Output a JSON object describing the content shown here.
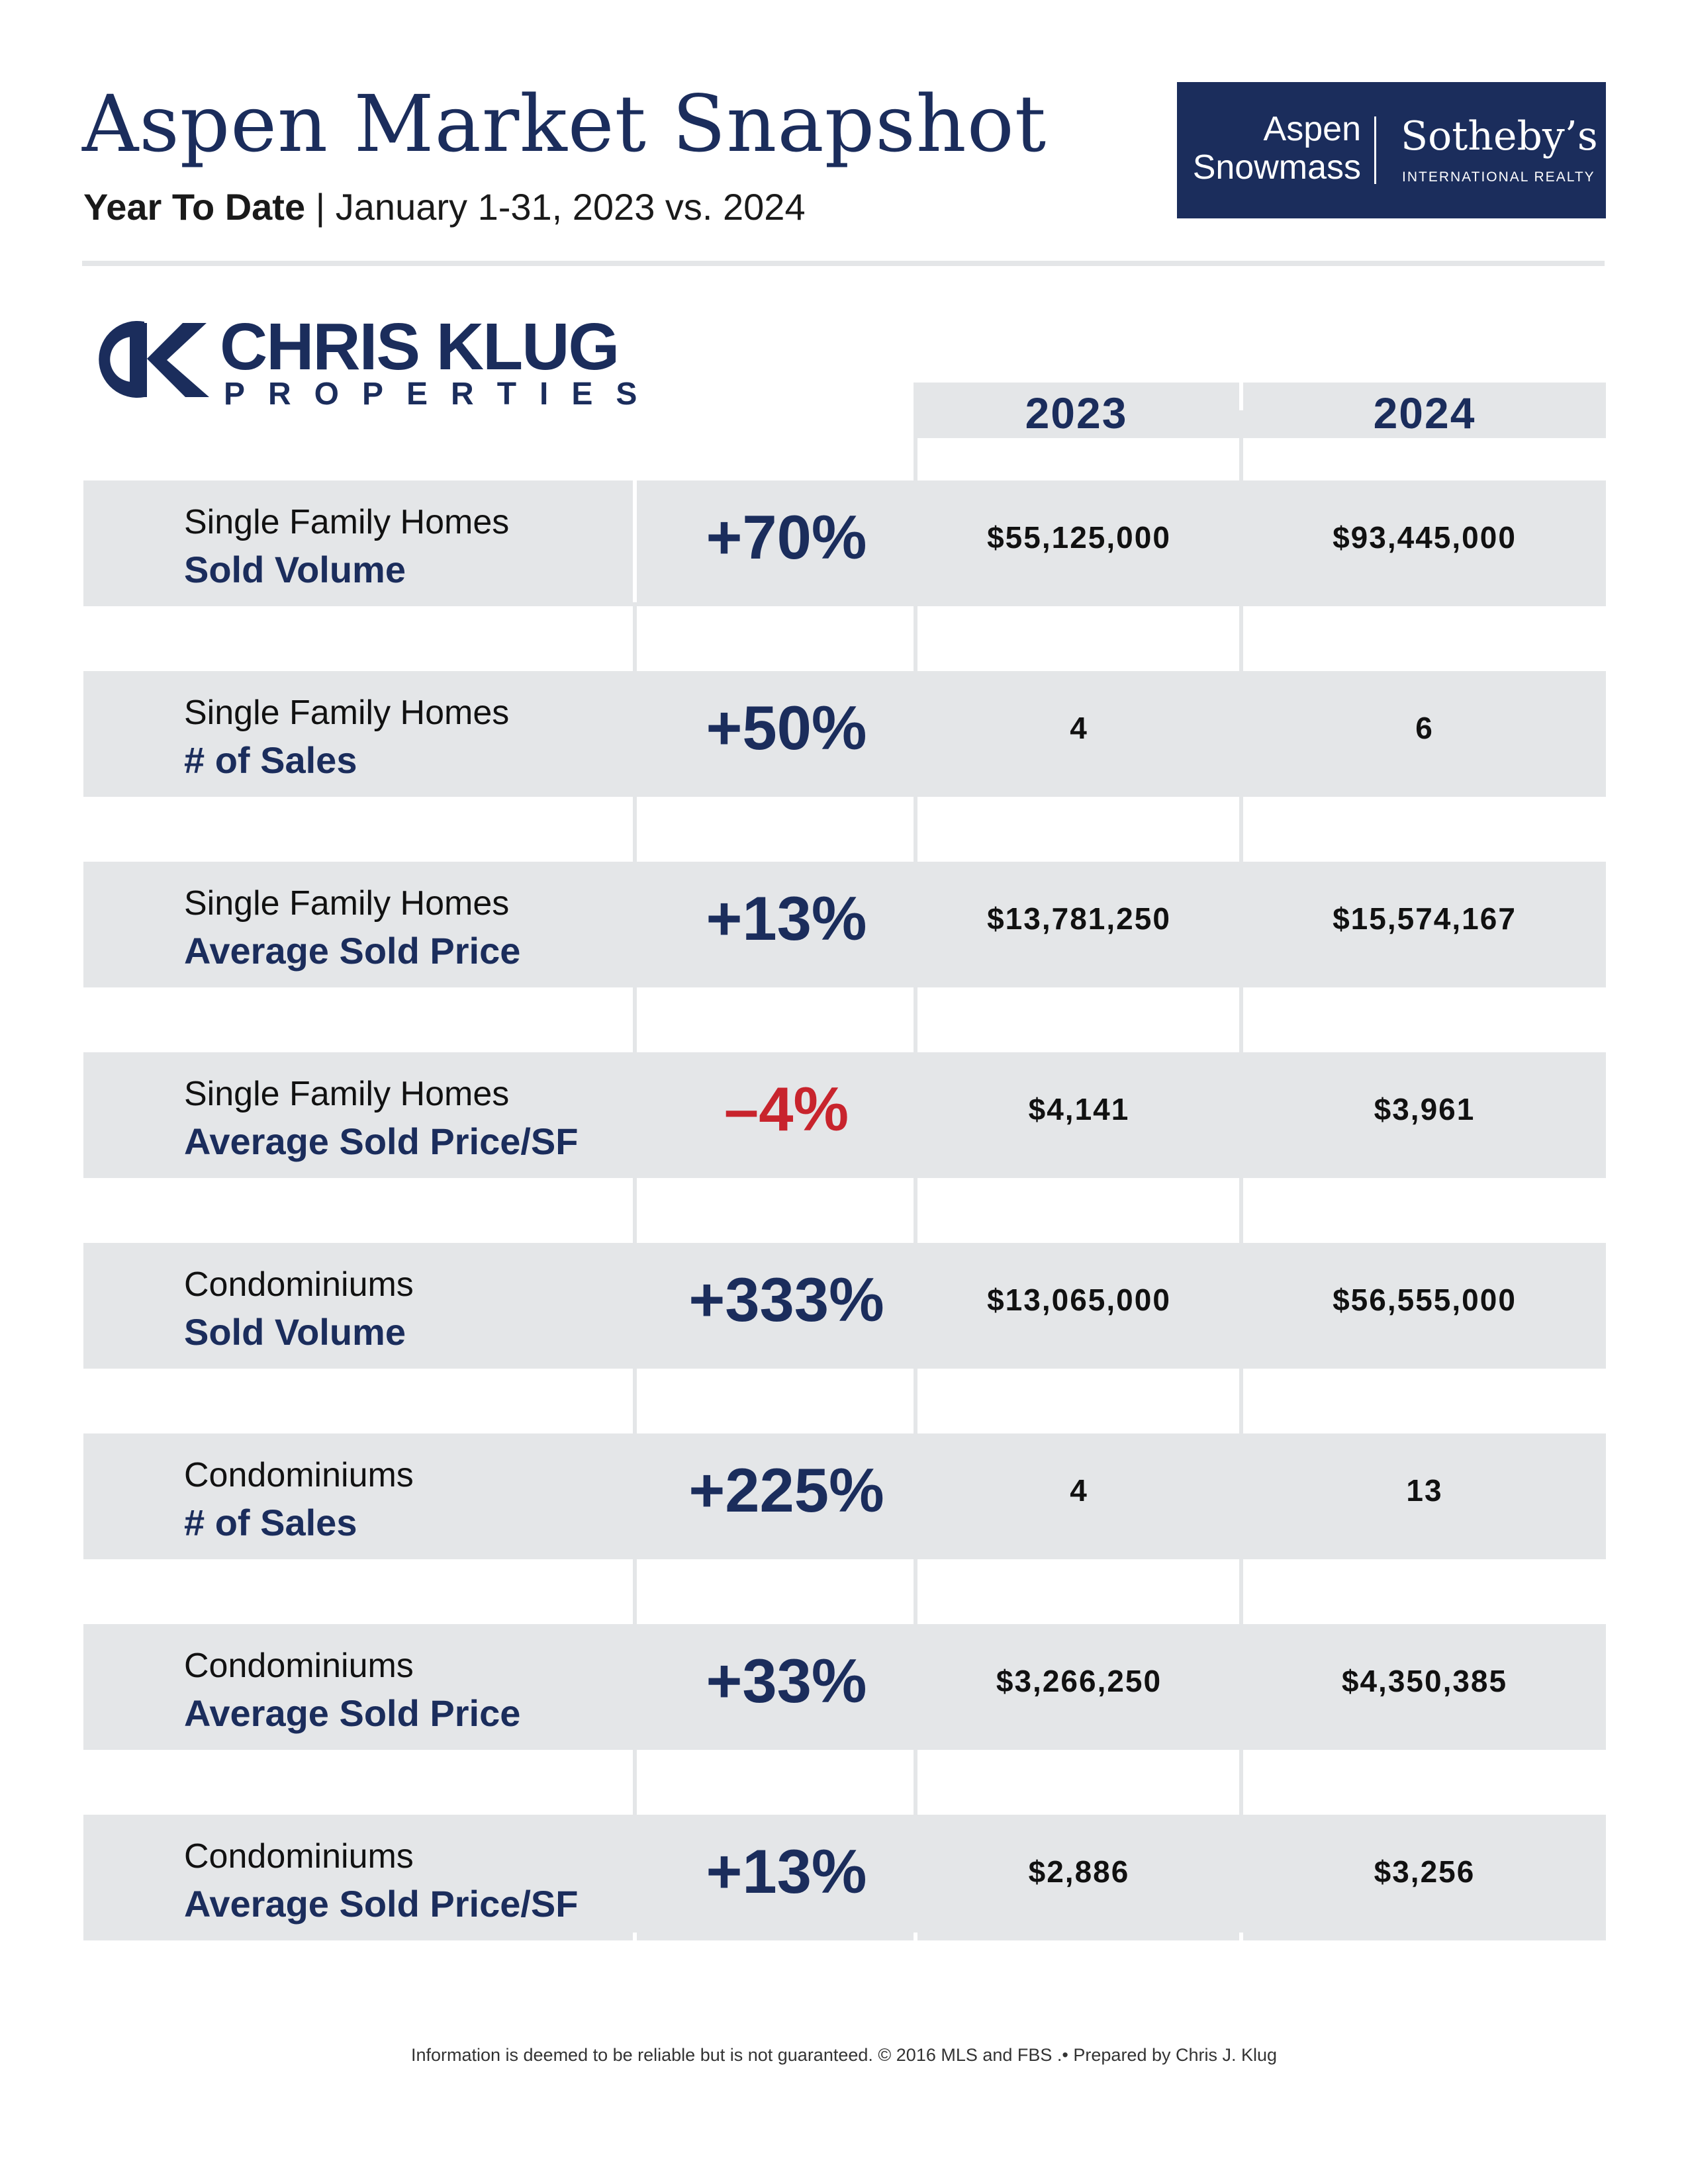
{
  "header": {
    "title": "Aspen Market Snapshot",
    "subtitle_lead": "Year To Date",
    "subtitle_separator": "|",
    "subtitle_range": "January 1-31, 2023 vs. 2024"
  },
  "brand": {
    "line1": "Aspen",
    "line2": "Snowmass",
    "name": "Sotheby’s",
    "tagline": "INTERNATIONAL REALTY",
    "color": "#1b2d5c"
  },
  "agent_logo": {
    "name": "CHRIS KLUG",
    "subtitle": "PROPERTIES",
    "mark_icon": "ck-monogram-icon"
  },
  "table": {
    "columns": [
      "2023",
      "2024"
    ],
    "rows": [
      {
        "category": "Single Family Homes",
        "metric": "Sold Volume",
        "change": "+70%",
        "negative": false,
        "v2023": "$55,125,000",
        "v2024": "$93,445,000"
      },
      {
        "category": "Single Family Homes",
        "metric": "# of Sales",
        "change": "+50%",
        "negative": false,
        "v2023": "4",
        "v2024": "6"
      },
      {
        "category": "Single Family Homes",
        "metric": "Average Sold Price",
        "change": "+13%",
        "negative": false,
        "v2023": "$13,781,250",
        "v2024": "$15,574,167"
      },
      {
        "category": "Single Family Homes",
        "metric": "Average Sold Price/SF",
        "change": "–4%",
        "negative": true,
        "v2023": "$4,141",
        "v2024": "$3,961"
      },
      {
        "category": "Condominiums",
        "metric": "Sold Volume",
        "change": "+333%",
        "negative": false,
        "v2023": "$13,065,000",
        "v2024": "$56,555,000"
      },
      {
        "category": "Condominiums",
        "metric": "# of Sales",
        "change": "+225%",
        "negative": false,
        "v2023": "4",
        "v2024": "13"
      },
      {
        "category": "Condominiums",
        "metric": "Average Sold Price",
        "change": "+33%",
        "negative": false,
        "v2023": "$3,266,250",
        "v2024": "$4,350,385"
      },
      {
        "category": "Condominiums",
        "metric": "Average Sold Price/SF",
        "change": "+13%",
        "negative": false,
        "v2023": "$2,886",
        "v2024": "$3,256"
      }
    ]
  },
  "colors": {
    "navy": "#1b2d5c",
    "negative": "#c8242d",
    "panel": "#e4e6e8"
  },
  "footer": {
    "disclaimer": "Information is deemed to be reliable but is not guaranteed. © 2016 MLS and FBS .• Prepared by Chris J. Klug"
  }
}
